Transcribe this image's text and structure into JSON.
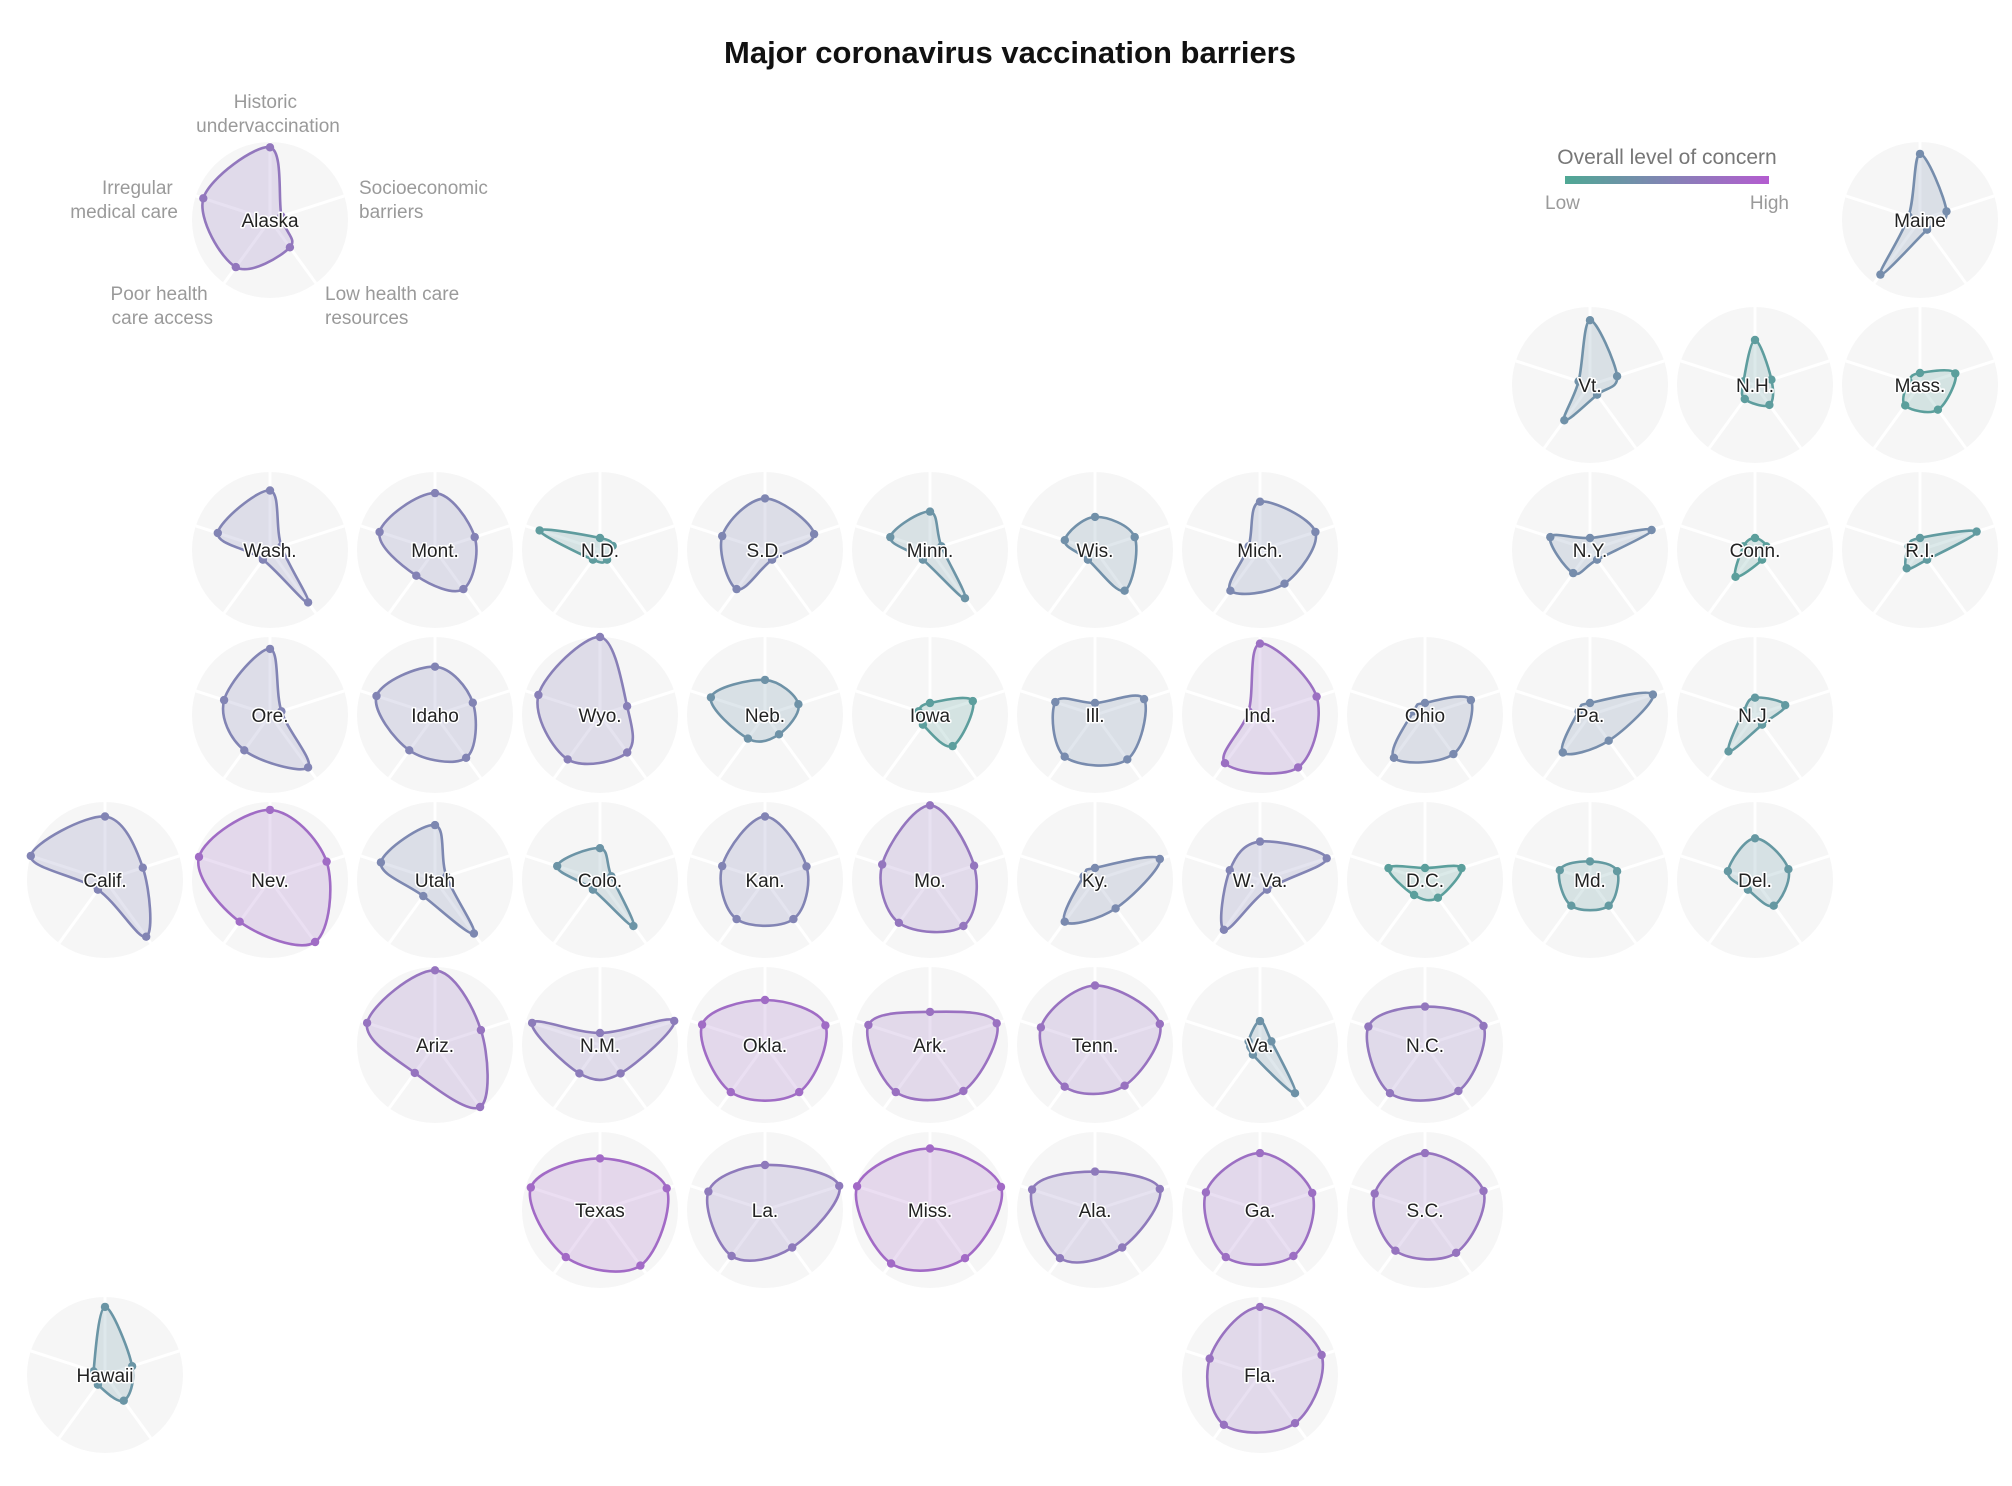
{
  "chart_data": {
    "type": "radar-small-multiples",
    "title": "Major coronavirus vaccination barriers",
    "axes": [
      "Historic undervaccination",
      "Socioeconomic barriers",
      "Low health care resources",
      "Poor health care access",
      "Irregular medical care"
    ],
    "axis_labels": [
      {
        "key": "historic",
        "lines": [
          "Historic",
          "undervaccination"
        ]
      },
      {
        "key": "socioeconomic",
        "lines": [
          "Socioeconomic",
          "barriers"
        ]
      },
      {
        "key": "low_resources",
        "lines": [
          "Low health care",
          "resources"
        ]
      },
      {
        "key": "poor_access",
        "lines": [
          "Poor health",
          "care access"
        ]
      },
      {
        "key": "irregular",
        "lines": [
          "Irregular",
          "medical care"
        ]
      }
    ],
    "legend": {
      "title": "Overall level of concern",
      "low_label": "Low",
      "high_label": "High",
      "colors": [
        "#4fa894",
        "#8284b4",
        "#b45cd0"
      ],
      "placement": "top-right"
    },
    "colors": {
      "low": "#4fa894",
      "mid": "#8284b4",
      "high": "#b45cd0"
    },
    "states": [
      {
        "label": "Alaska",
        "col": 1,
        "row": 0,
        "concern": 0.66,
        "values": [
          0.92,
          0.0,
          0.33,
          0.7,
          0.88
        ]
      },
      {
        "label": "Maine",
        "col": 11,
        "row": 0,
        "concern": 0.38,
        "values": [
          0.82,
          0.24,
          0.0,
          0.84,
          0.0
        ]
      },
      {
        "label": "Vt.",
        "col": 9,
        "row": 1,
        "concern": 0.32,
        "values": [
          0.8,
          0.25,
          0.0,
          0.48,
          0.0
        ]
      },
      {
        "label": "N.H.",
        "col": 10,
        "row": 1,
        "concern": 0.15,
        "values": [
          0.5,
          0.08,
          0.19,
          0.08,
          0.0
        ]
      },
      {
        "label": "Mass.",
        "col": 11,
        "row": 1,
        "concern": 0.12,
        "values": [
          0.0,
          0.38,
          0.28,
          0.2,
          0.0
        ]
      },
      {
        "label": "Wash.",
        "col": 1,
        "row": 2,
        "concern": 0.5,
        "values": [
          0.72,
          0.0,
          0.8,
          0.0,
          0.65
        ]
      },
      {
        "label": "Mont.",
        "col": 2,
        "row": 2,
        "concern": 0.52,
        "values": [
          0.68,
          0.45,
          0.55,
          0.3,
          0.7
        ]
      },
      {
        "label": "N.D.",
        "col": 3,
        "row": 2,
        "concern": 0.16,
        "values": [
          0.0,
          0.02,
          0.0,
          0.0,
          0.78
        ]
      },
      {
        "label": "S.D.",
        "col": 4,
        "row": 2,
        "concern": 0.47,
        "values": [
          0.6,
          0.6,
          0.0,
          0.55,
          0.5
        ]
      },
      {
        "label": "Minn.",
        "col": 5,
        "row": 2,
        "concern": 0.28,
        "values": [
          0.4,
          0.0,
          0.72,
          0.0,
          0.45
        ]
      },
      {
        "label": "Wis.",
        "col": 6,
        "row": 2,
        "concern": 0.33,
        "values": [
          0.32,
          0.45,
          0.58,
          0.0,
          0.3
        ]
      },
      {
        "label": "Mich.",
        "col": 7,
        "row": 2,
        "concern": 0.44,
        "values": [
          0.55,
          0.7,
          0.45,
          0.58,
          0.0
        ]
      },
      {
        "label": "N.Y.",
        "col": 9,
        "row": 2,
        "concern": 0.38,
        "values": [
          0.0,
          0.8,
          0.0,
          0.25,
          0.45
        ]
      },
      {
        "label": "Conn.",
        "col": 10,
        "row": 2,
        "concern": 0.12,
        "values": [
          0.0,
          0.0,
          0.0,
          0.32,
          0.0
        ]
      },
      {
        "label": "R.I.",
        "col": 11,
        "row": 2,
        "concern": 0.18,
        "values": [
          0.0,
          0.72,
          0.0,
          0.16,
          0.0
        ]
      },
      {
        "label": "Ore.",
        "col": 1,
        "row": 3,
        "concern": 0.5,
        "values": [
          0.82,
          0.0,
          0.8,
          0.48,
          0.55
        ]
      },
      {
        "label": "Idaho",
        "col": 2,
        "row": 3,
        "concern": 0.5,
        "values": [
          0.55,
          0.42,
          0.62,
          0.48,
          0.75
        ]
      },
      {
        "label": "Wyo.",
        "col": 3,
        "row": 3,
        "concern": 0.56,
        "values": [
          1.0,
          0.25,
          0.52,
          0.65,
          0.8
        ]
      },
      {
        "label": "Neb.",
        "col": 4,
        "row": 3,
        "concern": 0.3,
        "values": [
          0.35,
          0.35,
          0.18,
          0.26,
          0.68
        ]
      },
      {
        "label": "Iowa",
        "col": 5,
        "row": 3,
        "concern": 0.14,
        "values": [
          0.0,
          0.5,
          0.4,
          0.0,
          0.0
        ]
      },
      {
        "label": "Ill.",
        "col": 6,
        "row": 3,
        "concern": 0.4,
        "values": [
          0.0,
          0.6,
          0.65,
          0.6,
          0.45
        ]
      },
      {
        "label": "Ind.",
        "col": 7,
        "row": 3,
        "concern": 0.75,
        "values": [
          0.9,
          0.72,
          0.8,
          0.72,
          0.0
        ]
      },
      {
        "label": "Ohio",
        "col": 8,
        "row": 3,
        "concern": 0.42,
        "values": [
          0.0,
          0.55,
          0.55,
          0.62,
          0.0
        ]
      },
      {
        "label": "Pa.",
        "col": 9,
        "row": 3,
        "concern": 0.38,
        "values": [
          0.0,
          0.82,
          0.3,
          0.52,
          0.0
        ]
      },
      {
        "label": "N.J.",
        "col": 10,
        "row": 3,
        "concern": 0.2,
        "values": [
          0.08,
          0.3,
          0.0,
          0.5,
          0.0
        ]
      },
      {
        "label": "Calif.",
        "col": 0,
        "row": 4,
        "concern": 0.5,
        "values": [
          0.78,
          0.42,
          0.88,
          0.0,
          1.0
        ]
      },
      {
        "label": "Nev.",
        "col": 1,
        "row": 4,
        "concern": 0.8,
        "values": [
          0.88,
          0.72,
          0.98,
          0.6,
          0.95
        ]
      },
      {
        "label": "Utah",
        "col": 2,
        "row": 4,
        "concern": 0.45,
        "values": [
          0.65,
          0.0,
          0.82,
          0.12,
          0.68
        ]
      },
      {
        "label": "Colo.",
        "col": 3,
        "row": 4,
        "concern": 0.28,
        "values": [
          0.3,
          0.0,
          0.68,
          0.0,
          0.5
        ]
      },
      {
        "label": "Kan.",
        "col": 4,
        "row": 4,
        "concern": 0.5,
        "values": [
          0.78,
          0.48,
          0.55,
          0.55,
          0.5
        ]
      },
      {
        "label": "Mo.",
        "col": 5,
        "row": 4,
        "concern": 0.68,
        "values": [
          0.95,
          0.52,
          0.68,
          0.62,
          0.58
        ]
      },
      {
        "label": "Ky.",
        "col": 6,
        "row": 4,
        "concern": 0.42,
        "values": [
          0.0,
          0.85,
          0.35,
          0.6,
          0.0
        ]
      },
      {
        "label": "W. Va.",
        "col": 7,
        "row": 4,
        "concern": 0.5,
        "values": [
          0.4,
          0.88,
          0.0,
          0.75,
          0.3
        ]
      },
      {
        "label": "D.C.",
        "col": 8,
        "row": 4,
        "concern": 0.12,
        "values": [
          0.0,
          0.4,
          0.15,
          0.1,
          0.4
        ]
      },
      {
        "label": "Md.",
        "col": 9,
        "row": 4,
        "concern": 0.2,
        "values": [
          0.1,
          0.25,
          0.3,
          0.3,
          0.3
        ]
      },
      {
        "label": "Del.",
        "col": 10,
        "row": 4,
        "concern": 0.22,
        "values": [
          0.45,
          0.35,
          0.3,
          0.0,
          0.25
        ]
      },
      {
        "label": "Ariz.",
        "col": 2,
        "row": 5,
        "concern": 0.7,
        "values": [
          0.95,
          0.55,
          0.98,
          0.34,
          0.9
        ]
      },
      {
        "label": "N.M.",
        "col": 3,
        "row": 5,
        "concern": 0.6,
        "values": [
          0.0,
          1.0,
          0.35,
          0.35,
          0.9
        ]
      },
      {
        "label": "Okla.",
        "col": 4,
        "row": 5,
        "concern": 0.8,
        "values": [
          0.5,
          0.78,
          0.7,
          0.7,
          0.82
        ]
      },
      {
        "label": "Ark.",
        "col": 5,
        "row": 5,
        "concern": 0.74,
        "values": [
          0.32,
          0.88,
          0.68,
          0.7,
          0.8
        ]
      },
      {
        "label": "Tenn.",
        "col": 6,
        "row": 5,
        "concern": 0.72,
        "values": [
          0.72,
          0.85,
          0.58,
          0.6,
          0.68
        ]
      },
      {
        "label": "Va.",
        "col": 7,
        "row": 5,
        "concern": 0.3,
        "values": [
          0.18,
          0.0,
          0.72,
          0.0,
          0.0
        ]
      },
      {
        "label": "N.C.",
        "col": 8,
        "row": 5,
        "concern": 0.66,
        "values": [
          0.4,
          0.75,
          0.68,
          0.72,
          0.72
        ]
      },
      {
        "label": "Texas",
        "col": 3,
        "row": 6,
        "concern": 0.82,
        "values": [
          0.6,
          0.88,
          0.86,
          0.7,
          0.92
        ]
      },
      {
        "label": "La.",
        "col": 4,
        "row": 6,
        "concern": 0.62,
        "values": [
          0.5,
          1.0,
          0.52,
          0.68,
          0.72
        ]
      },
      {
        "label": "Miss.",
        "col": 5,
        "row": 6,
        "concern": 0.82,
        "values": [
          0.75,
          0.95,
          0.72,
          0.82,
          0.98
        ]
      },
      {
        "label": "Ala.",
        "col": 6,
        "row": 6,
        "concern": 0.62,
        "values": [
          0.4,
          0.85,
          0.52,
          0.72,
          0.82
        ]
      },
      {
        "label": "Ga.",
        "col": 7,
        "row": 6,
        "concern": 0.76,
        "values": [
          0.68,
          0.65,
          0.68,
          0.7,
          0.68
        ]
      },
      {
        "label": "S.C.",
        "col": 8,
        "row": 6,
        "concern": 0.7,
        "values": [
          0.68,
          0.75,
          0.62,
          0.58,
          0.62
        ]
      },
      {
        "label": "Hawaii",
        "col": 0,
        "row": 7,
        "concern": 0.26,
        "values": [
          0.85,
          0.25,
          0.3,
          0.0,
          0.0
        ]
      },
      {
        "label": "Fla.",
        "col": 7,
        "row": 7,
        "concern": 0.72,
        "values": [
          0.85,
          0.8,
          0.72,
          0.75,
          0.62
        ]
      }
    ]
  }
}
